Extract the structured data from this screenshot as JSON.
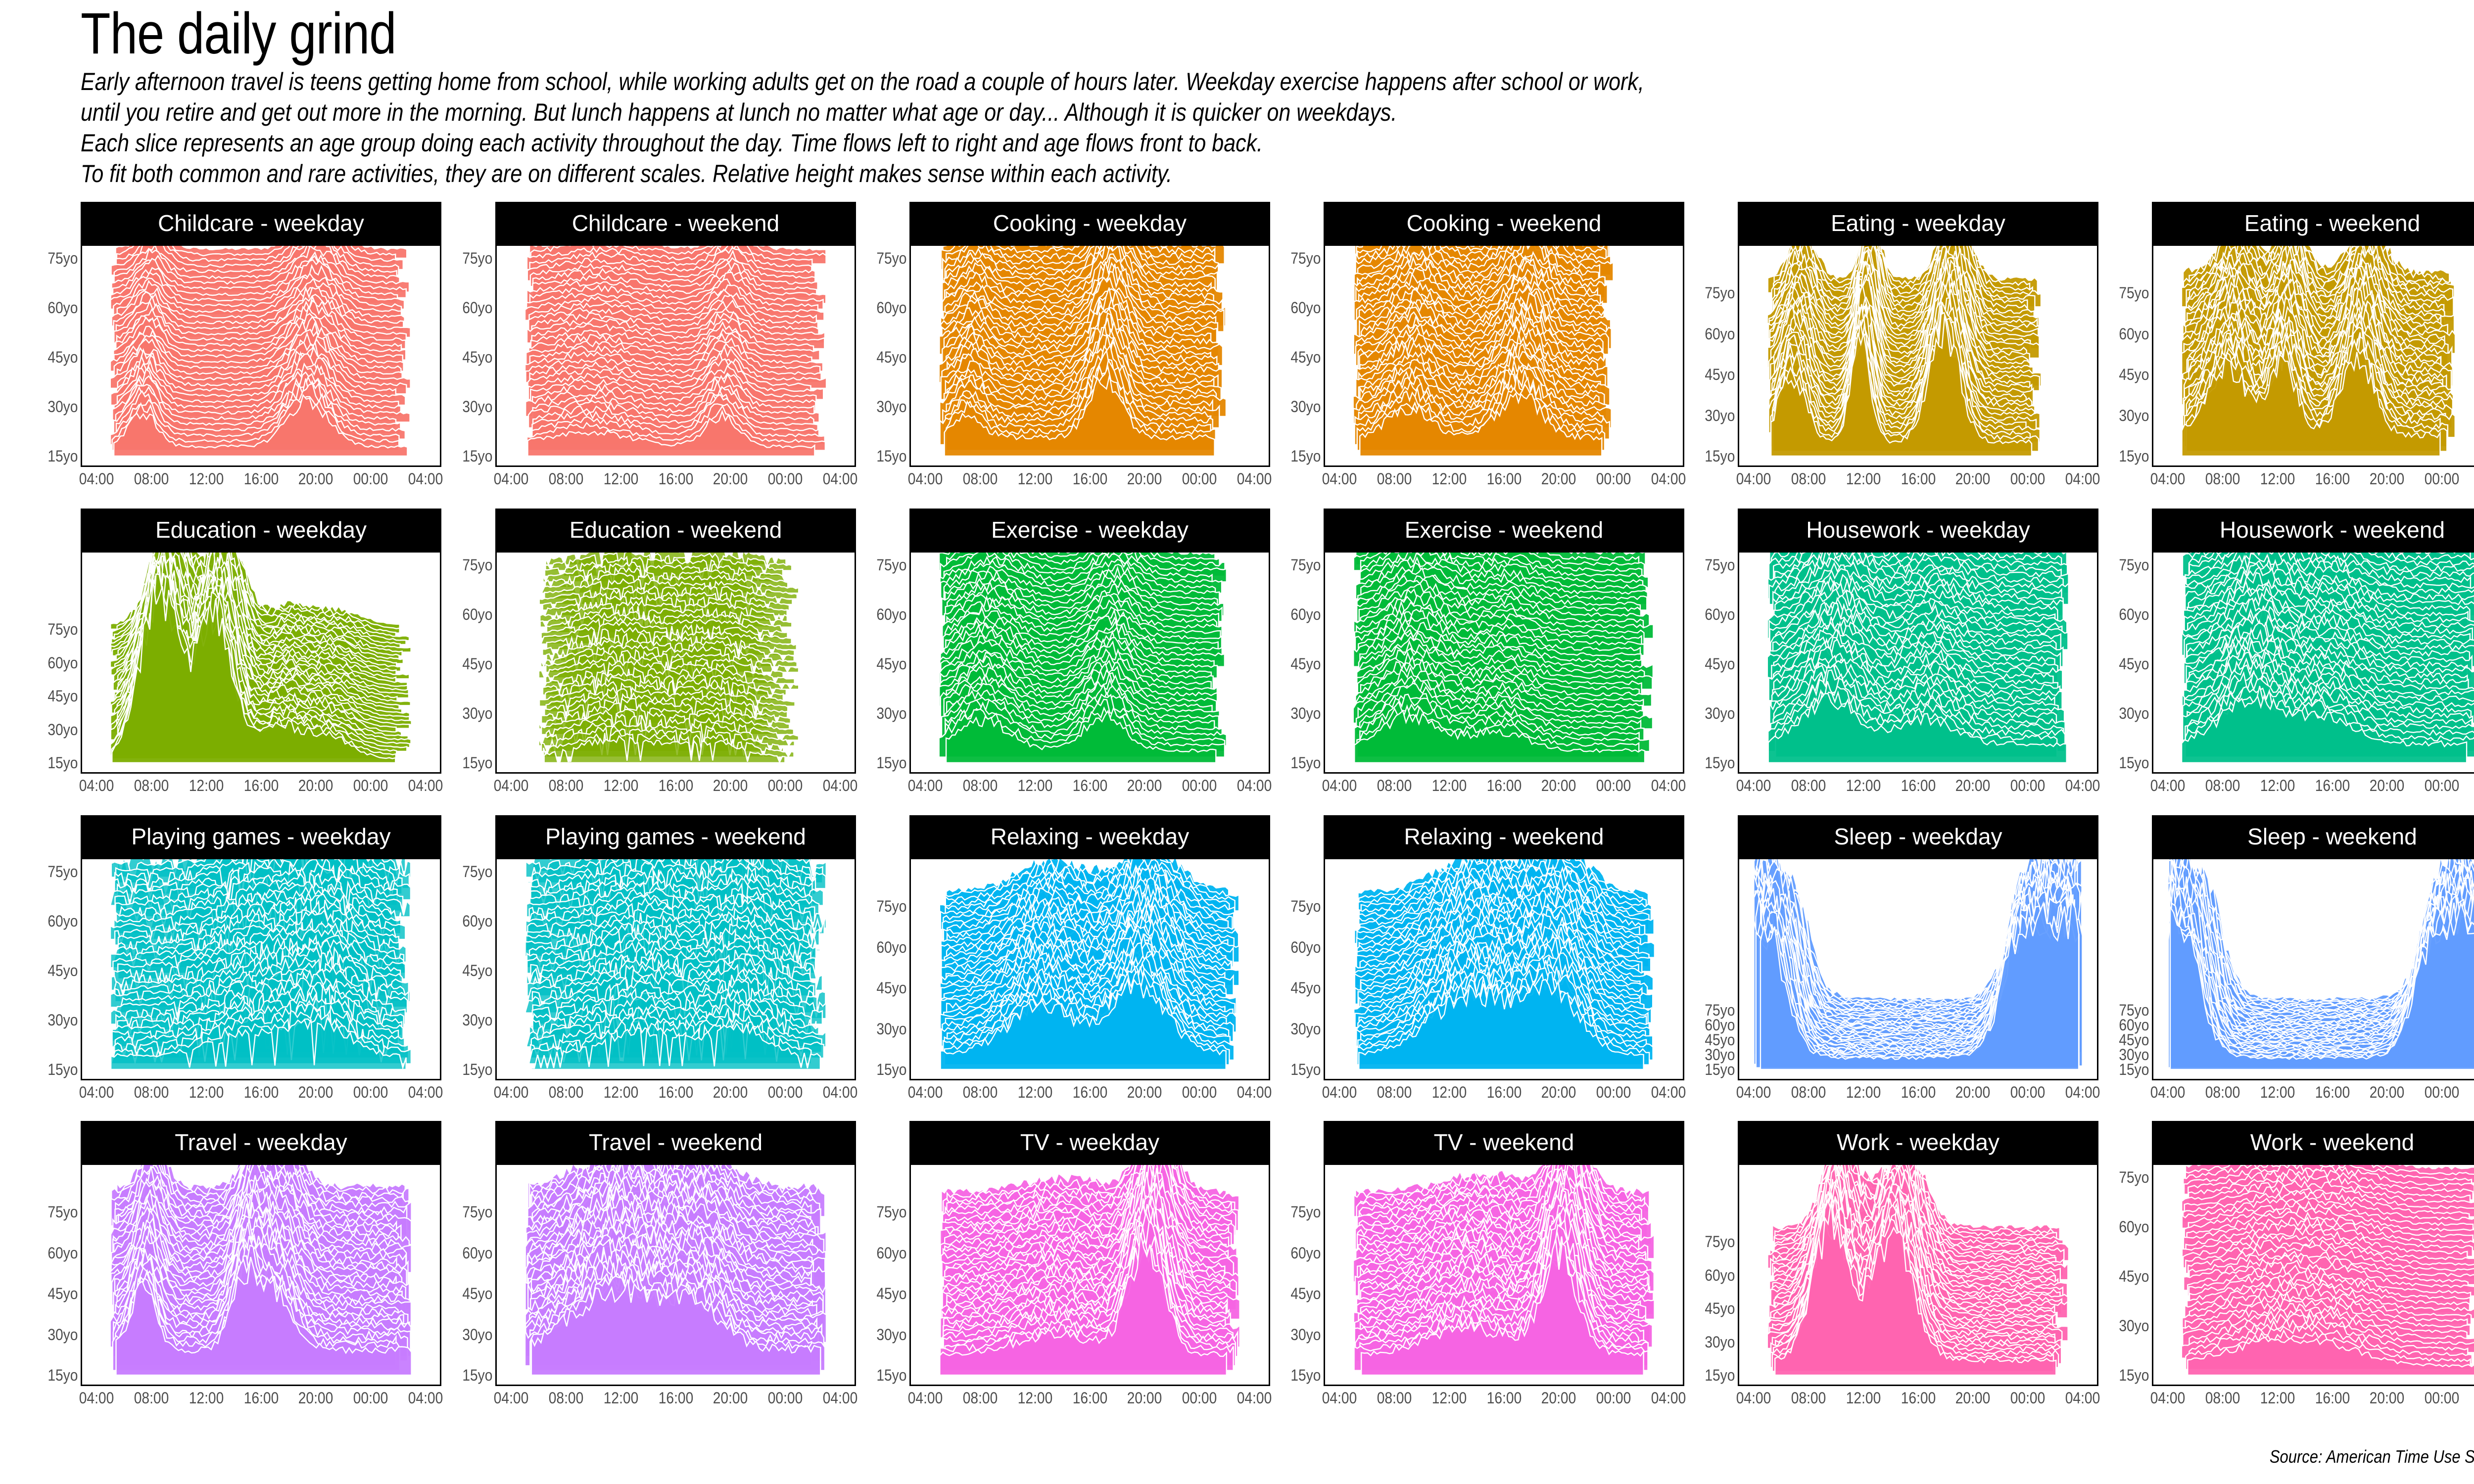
{
  "title": "The daily grind",
  "subtitle": [
    "Early afternoon travel is teens getting home from school, while working adults get on the road a couple of hours later. Weekday exercise happens after school or work,",
    "until you retire and get out more in the morning. But lunch happens at lunch no matter what age or day... Although it is quicker on weekdays.",
    "Each slice represents an age group doing each activity throughout the day. Time flows left to right and age flows front to back.",
    "To fit both common and rare activities, they are on different scales. Relative height makes sense within each activity."
  ],
  "caption": "Source: American Time Use Survey",
  "chart_data": {
    "type": "ridgeline",
    "x_ticks": [
      "04:00",
      "08:00",
      "12:00",
      "16:00",
      "20:00",
      "00:00",
      "04:00"
    ],
    "y_ticks": [
      "15yo",
      "30yo",
      "45yo",
      "60yo",
      "75yo"
    ],
    "panels": [
      {
        "label": "Childcare - weekday",
        "color": "#F8766D",
        "scale": 0.55,
        "peaks": [
          [
            7.8,
            0.9,
            1.0
          ],
          [
            19.8,
            1.2,
            1.5
          ]
        ],
        "base": 0.35,
        "span": [
          5,
          27
        ]
      },
      {
        "label": "Childcare - weekend",
        "color": "#F8766D",
        "scale": 0.45,
        "peaks": [
          [
            10,
            0.4,
            3.0
          ],
          [
            19.7,
            0.8,
            1.2
          ]
        ],
        "base": 0.35,
        "span": [
          5,
          27
        ]
      },
      {
        "label": "Cooking - weekday",
        "color": "#E58700",
        "scale": 0.9,
        "peaks": [
          [
            7.5,
            0.5,
            1.0
          ],
          [
            17.5,
            1.2,
            1.2
          ]
        ],
        "base": 0.55,
        "span": [
          5,
          26
        ]
      },
      {
        "label": "Cooking - weekend",
        "color": "#E58700",
        "scale": 0.9,
        "peaks": [
          [
            9.5,
            0.6,
            1.5
          ],
          [
            17.5,
            0.9,
            1.5
          ]
        ],
        "base": 0.55,
        "span": [
          5,
          24
        ]
      },
      {
        "label": "Eating - weekday",
        "color": "#C49A00",
        "scale": 1.2,
        "peaks": [
          [
            7.2,
            1.0,
            1.0
          ],
          [
            12.2,
            1.5,
            0.7
          ],
          [
            18.3,
            1.7,
            1.1
          ]
        ],
        "base": 0.3,
        "span": [
          5,
          25
        ]
      },
      {
        "label": "Eating - weekend",
        "color": "#C49A00",
        "scale": 1.0,
        "peaks": [
          [
            8.8,
            1.0,
            1.5
          ],
          [
            12.8,
            1.1,
            1.0
          ],
          [
            18.2,
            1.2,
            1.2
          ]
        ],
        "base": 0.45,
        "span": [
          5,
          25
        ]
      },
      {
        "label": "Education - weekday",
        "color": "#7CAE00",
        "scale": 2.8,
        "peaks": [
          [
            9.0,
            1.4,
            1.4
          ],
          [
            13.0,
            1.2,
            1.3
          ],
          [
            17.5,
            0.25,
            1.5
          ],
          [
            21.0,
            0.2,
            1.8
          ]
        ],
        "base": 0.05,
        "span": [
          5,
          27
        ],
        "levels": 3
      },
      {
        "label": "Education - weekend",
        "color": "#7CAE00",
        "scale": 0.35,
        "peaks": [
          [
            12,
            0.5,
            3.0
          ],
          [
            19,
            0.4,
            2.5
          ]
        ],
        "base": 0.15,
        "span": [
          6,
          25
        ],
        "sparse": true
      },
      {
        "label": "Exercise - weekday",
        "color": "#00BA38",
        "scale": 0.55,
        "peaks": [
          [
            8.5,
            0.8,
            2.0
          ],
          [
            17.5,
            0.9,
            1.5
          ]
        ],
        "base": 0.45,
        "span": [
          5,
          26
        ]
      },
      {
        "label": "Exercise - weekend",
        "color": "#00BA38",
        "scale": 0.55,
        "peaks": [
          [
            9.5,
            0.9,
            2.2
          ],
          [
            16,
            0.5,
            2.0
          ]
        ],
        "base": 0.45,
        "span": [
          5,
          27
        ]
      },
      {
        "label": "Housework - weekday",
        "color": "#00C08B",
        "scale": 0.8,
        "peaks": [
          [
            10,
            0.9,
            2.0
          ],
          [
            17,
            0.5,
            2.0
          ]
        ],
        "base": 0.55,
        "span": [
          5,
          27
        ]
      },
      {
        "label": "Housework - weekend",
        "color": "#00C08B",
        "scale": 0.8,
        "peaks": [
          [
            10.5,
            0.9,
            2.2
          ],
          [
            16,
            0.5,
            2.0
          ]
        ],
        "base": 0.55,
        "span": [
          5,
          27
        ]
      },
      {
        "label": "Playing games - weekday",
        "color": "#00BFC4",
        "scale": 0.35,
        "peaks": [
          [
            16,
            0.6,
            3.0
          ],
          [
            21,
            0.7,
            2.0
          ]
        ],
        "base": 0.5,
        "span": [
          5,
          27
        ],
        "sparse": true
      },
      {
        "label": "Playing games - weekend",
        "color": "#00BFC4",
        "scale": 0.35,
        "peaks": [
          [
            14,
            0.6,
            3.0
          ],
          [
            21,
            0.7,
            2.0
          ]
        ],
        "base": 0.5,
        "span": [
          5,
          27
        ],
        "sparse": true
      },
      {
        "label": "Relaxing - weekday",
        "color": "#00B4F0",
        "scale": 1.0,
        "peaks": [
          [
            13,
            0.7,
            2.5
          ],
          [
            20,
            1.0,
            2.0
          ]
        ],
        "base": 0.35,
        "span": [
          5,
          27
        ]
      },
      {
        "label": "Relaxing - weekend",
        "color": "#00B4F0",
        "scale": 1.0,
        "peaks": [
          [
            14,
            0.9,
            3.0
          ],
          [
            20,
            0.9,
            2.0
          ]
        ],
        "base": 0.3,
        "span": [
          5,
          27
        ]
      },
      {
        "label": "Sleep - weekday",
        "color": "#619CFF",
        "scale": 1.0,
        "peaks": [],
        "base": 0.0,
        "span": [
          4,
          28
        ],
        "sleep": true
      },
      {
        "label": "Sleep - weekend",
        "color": "#619CFF",
        "scale": 1.0,
        "peaks": [],
        "base": 0.0,
        "span": [
          4,
          28
        ],
        "sleep": true
      },
      {
        "label": "Travel - weekday",
        "color": "#C77CFF",
        "scale": 1.0,
        "peaks": [
          [
            7.8,
            0.9,
            0.9
          ],
          [
            15.2,
            1.0,
            1.0
          ],
          [
            17.5,
            0.8,
            1.3
          ]
        ],
        "base": 0.55,
        "span": [
          5,
          27
        ]
      },
      {
        "label": "Travel - weekend",
        "color": "#C77CFF",
        "scale": 1.0,
        "peaks": [
          [
            12,
            0.9,
            3.0
          ],
          [
            18,
            0.6,
            2.0
          ]
        ],
        "base": 0.55,
        "span": [
          5,
          27
        ]
      },
      {
        "label": "TV - weekday",
        "color": "#F564E3",
        "scale": 1.0,
        "peaks": [
          [
            20.5,
            1.6,
            1.3
          ],
          [
            14,
            0.3,
            3.0
          ]
        ],
        "base": 0.45,
        "span": [
          5,
          27
        ]
      },
      {
        "label": "TV - weekend",
        "color": "#F564E3",
        "scale": 1.0,
        "peaks": [
          [
            20.5,
            1.5,
            1.3
          ],
          [
            14,
            0.4,
            3.0
          ]
        ],
        "base": 0.45,
        "span": [
          5,
          27
        ]
      },
      {
        "label": "Work - weekday",
        "color": "#FF64B0",
        "scale": 1.6,
        "peaks": [
          [
            10,
            1.3,
            1.3
          ],
          [
            14.5,
            1.2,
            1.5
          ]
        ],
        "base": 0.2,
        "span": [
          5,
          27
        ]
      },
      {
        "label": "Work - weekend",
        "color": "#FF64B0",
        "scale": 0.6,
        "peaks": [
          [
            12,
            0.6,
            3.5
          ],
          [
            17,
            0.3,
            2.5
          ]
        ],
        "base": 0.35,
        "span": [
          5,
          27
        ]
      }
    ]
  }
}
